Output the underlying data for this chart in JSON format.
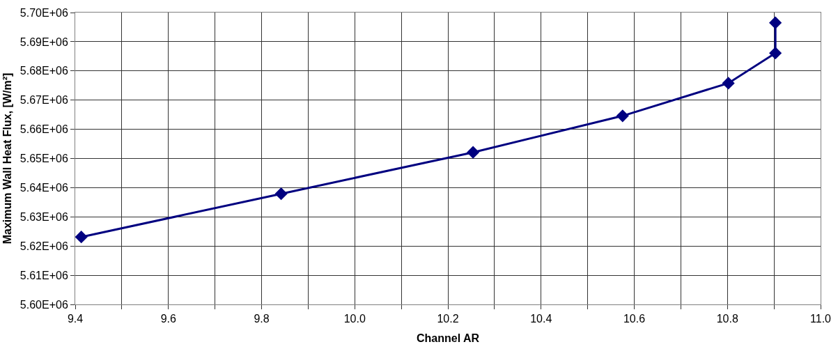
{
  "chart_data": {
    "type": "line",
    "xlabel": "Channel AR",
    "ylabel": "Maximum Wall Heat Flux, [W/m²]",
    "x": [
      9.413,
      9.842,
      10.254,
      10.575,
      10.802,
      10.903,
      10.903
    ],
    "series": [
      {
        "color": "#000080",
        "values": [
          5623100,
          5637900,
          5652100,
          5664600,
          5675800,
          5686100,
          5696500
        ]
      }
    ],
    "xlim": [
      9.4,
      11.0
    ],
    "xticks": [
      {
        "value": 9.4,
        "label": "9.4"
      },
      {
        "value": 9.5,
        "label": null
      },
      {
        "value": 9.6,
        "label": "9.6"
      },
      {
        "value": 9.7,
        "label": null
      },
      {
        "value": 9.8,
        "label": "9.8"
      },
      {
        "value": 9.9,
        "label": null
      },
      {
        "value": 10.0,
        "label": "10.0"
      },
      {
        "value": 10.1,
        "label": null
      },
      {
        "value": 10.2,
        "label": "10.2"
      },
      {
        "value": 10.3,
        "label": null
      },
      {
        "value": 10.4,
        "label": "10.4"
      },
      {
        "value": 10.5,
        "label": null
      },
      {
        "value": 10.6,
        "label": "10.6"
      },
      {
        "value": 10.7,
        "label": null
      },
      {
        "value": 10.8,
        "label": "10.8"
      },
      {
        "value": 10.9,
        "label": null
      },
      {
        "value": 11.0,
        "label": "11.0"
      }
    ],
    "ylim": [
      5600000,
      5700000
    ],
    "yticks": [
      {
        "value": 5600000,
        "label": "5.60E+06"
      },
      {
        "value": 5610000,
        "label": "5.61E+06"
      },
      {
        "value": 5620000,
        "label": "5.62E+06"
      },
      {
        "value": 5630000,
        "label": "5.63E+06"
      },
      {
        "value": 5640000,
        "label": "5.64E+06"
      },
      {
        "value": 5650000,
        "label": "5.65E+06"
      },
      {
        "value": 5660000,
        "label": "5.66E+06"
      },
      {
        "value": 5670000,
        "label": "5.67E+06"
      },
      {
        "value": 5680000,
        "label": "5.68E+06"
      },
      {
        "value": 5690000,
        "label": "5.69E+06"
      },
      {
        "value": 5700000,
        "label": "5.70E+06"
      }
    ],
    "grid": true,
    "marker": "diamond",
    "line_style": "solid"
  }
}
